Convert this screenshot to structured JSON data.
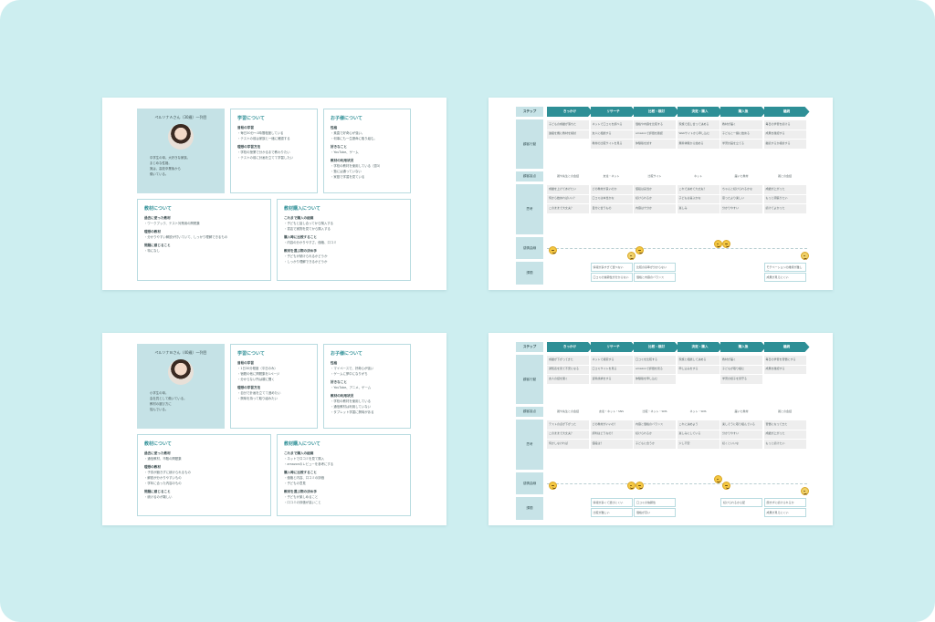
{
  "personas": [
    {
      "profile": {
        "name": "ペルソナＡさん（30歳）一列目",
        "description": [
          "中学生の母。大好きな家族。",
          "まじめな性格。",
          "実は、高校卒業後から",
          "働いている。"
        ]
      },
      "learning": {
        "title": "学習について",
        "groups": [
          {
            "heading": "普段の学習",
            "items": [
              "・毎日30分〜1時間程度している",
              "・テストの前は家族と一緒に確認する"
            ]
          },
          {
            "heading": "理想の学習方法",
            "items": [
              "・学校の授業で分かるまで教わりたい",
              "・テストの前に計画を立てて学習したい"
            ]
          }
        ]
      },
      "child": {
        "title": "お子様について",
        "groups": [
          {
            "heading": "性格",
            "items": [
              "・素直で好奇心が強い。",
              "・何事にも一生懸命に取り組む。"
            ]
          },
          {
            "heading": "好きなこと",
            "items": [
              "・YouTube、ゲーム"
            ]
          },
          {
            "heading": "教材の利用状況",
            "items": [
              "・学校の教材を使用している（週3）",
              "・塾には通っていない",
              "・家庭で学習を見ている"
            ]
          }
        ]
      },
      "material": {
        "title": "教材について",
        "groups": [
          {
            "heading": "過去に使った教材",
            "items": [
              "・ワークブック、テスト対策用の問題集"
            ]
          },
          {
            "heading": "理想の教材",
            "items": [
              "・分かりやすい解説が付いていて、しっかり理解できるもの"
            ]
          },
          {
            "heading": "問題に感じること",
            "items": [
              "・特になし"
            ]
          }
        ]
      },
      "purchase": {
        "title": "教材購入について",
        "groups": [
          {
            "heading": "これまで購入の経緯",
            "items": [
              "・子どもと話し合ってから購入する",
              "・書店で実物を見てから購入する"
            ]
          },
          {
            "heading": "購入時に比較すること",
            "items": [
              "・内容の分かりやすさ、価格、口コミ"
            ]
          },
          {
            "heading": "教材を選ぶ際の決め手",
            "items": [
              "・子どもが続けられるかどうか",
              "・しっかり理解できるかどうか"
            ]
          }
        ]
      }
    },
    {
      "profile": {
        "name": "ペルソナＢさん（40歳）一列目",
        "description": [
          "小学生の母。",
          "会社員として働いている。",
          "教材の選び方に",
          "悩んでいる。"
        ]
      },
      "learning": {
        "title": "学習について",
        "groups": [
          {
            "heading": "普段の学習",
            "items": [
              "・1日30分程度（平日のみ）",
              "・宿題の他に問題集を1ページ",
              "・分からない所は親に聞く"
            ]
          },
          {
            "heading": "理想の学習方法",
            "items": [
              "・自分で計画を立てて進めたい",
              "・興味を持って取り組みたい"
            ]
          }
        ]
      },
      "child": {
        "title": "お子様について",
        "groups": [
          {
            "heading": "性格",
            "items": [
              "・マイペースで、好奇心が強い",
              "・ゲームに夢中になりがち"
            ]
          },
          {
            "heading": "好きなこと",
            "items": [
              "・YouTube、アニメ、ゲーム"
            ]
          },
          {
            "heading": "教材の利用状況",
            "items": [
              "・学校の教材を使用している",
              "・通信教材は利用していない",
              "・タブレット学習に興味がある"
            ]
          }
        ]
      },
      "material": {
        "title": "教材について",
        "groups": [
          {
            "heading": "過去に使った教材",
            "items": [
              "・通信教材、市販の問題集"
            ]
          },
          {
            "heading": "理想の教材",
            "items": [
              "・子供が飽きずに続けられるもの",
              "・解説が分かりやすいもの",
              "・学年に合った内容のもの"
            ]
          },
          {
            "heading": "問題に感じること",
            "items": [
              "・続けるのが難しい"
            ]
          }
        ]
      },
      "purchase": {
        "title": "教材購入について",
        "groups": [
          {
            "heading": "これまで購入の経緯",
            "items": [
              "・ネットで口コミを見て購入",
              "・amazonのレビューを参考にする"
            ]
          },
          {
            "heading": "購入時に比較すること",
            "items": [
              "・価格と内容、口コミの評価",
              "・子どもの意見"
            ]
          },
          {
            "heading": "教材を選ぶ際の決め手",
            "items": [
              "・子どもが楽しめること",
              "・口コミの評価が高いこと"
            ]
          }
        ]
      }
    }
  ],
  "journeys": [
    {
      "step_label": "ステップ",
      "steps": [
        "きっかけ",
        "リサーチ",
        "比較・検討",
        "決定・購入",
        "購入後",
        "継続"
      ],
      "row_labels": {
        "behavior": "顧客行動",
        "touchpoint": "顧客接点",
        "thought": "思考",
        "emotion": "感情曲線",
        "issue": "課題"
      },
      "behavior": [
        [
          "子どもの成績が落ちた",
          "進級を機に教材を検討"
        ],
        [
          "ネットで口コミを調べる",
          "友人に相談する",
          "教材の比較サイトを見る"
        ],
        [
          "価格や内容を比較する",
          "amazonで評価を確認",
          "体験版を試す"
        ],
        [
          "家族で話し合って決める",
          "Webサイトから申し込む",
          "無料体験から始める"
        ],
        [
          "教材が届く",
          "子どもと一緒に始める",
          "学習計画を立てる"
        ],
        [
          "毎日の学習を続ける",
          "成果を確認する",
          "継続するか検討する"
        ]
      ],
      "touchpoints": [
        "親や先生との会話",
        "友達・ネット",
        "比較サイト",
        "ネット",
        "届いた教材",
        "親との会話"
      ],
      "thoughts": [
        [
          "成績を上げてあげたい",
          "何から始めればいい？",
          "このままで大丈夫？"
        ],
        [
          "どの教材が良いのか",
          "口コミは本当かな",
          "自分に合うもの"
        ],
        [
          "値段は妥当か",
          "続けられるか",
          "内容は十分か"
        ],
        [
          "これで決めて大丈夫？",
          "子どもは喜ぶかな",
          "楽しみ"
        ],
        [
          "ちゃんと続けられるかな",
          "思ったより楽しい",
          "分かりやすい"
        ],
        [
          "成績が上がった",
          "もっと頑張りたい",
          "続けてよかった"
        ]
      ],
      "emotions": [
        "neutral",
        "sad",
        "neutral",
        "happy",
        "happy",
        "sad"
      ],
      "issues": [
        [],
        [
          "情報が多すぎて選べない",
          "口コミの信頼性が分からない"
        ],
        [
          "比較の基準が分からない",
          "価格と内容のバランス"
        ],
        [],
        [],
        [
          "モチベーションの維持が難しい",
          "成果が見えにくい"
        ]
      ]
    },
    {
      "step_label": "ステップ",
      "steps": [
        "きっかけ",
        "リサーチ",
        "比較・検討",
        "決定・購入",
        "購入後",
        "継続"
      ],
      "row_labels": {
        "behavior": "顧客行動",
        "touchpoint": "顧客接点",
        "thought": "思考",
        "emotion": "感情曲線",
        "issue": "課題"
      },
      "behavior": [
        [
          "成績が下がってきた",
          "通知表を見て不安になる",
          "友人の話を聞く"
        ],
        [
          "ネットで検索する",
          "口コミサイトを見る",
          "資料請求をする"
        ],
        [
          "口コミを比較する",
          "amazonで評価を見る",
          "体験版を申し込む"
        ],
        [
          "家族と相談して決める",
          "申し込みをする"
        ],
        [
          "教材が届く",
          "子どもが取り組む",
          "学習の様子を見守る"
        ],
        [
          "毎日の学習を習慣にする",
          "成果を確認する"
        ]
      ],
      "touchpoints": [
        "親や先生との会話",
        "友達・ネット・SNS",
        "比較・ネット・SNS",
        "ネット・SNS",
        "届いた教材",
        "親との会話"
      ],
      "thoughts": [
        [
          "テストの点が下がった",
          "このままで大丈夫？",
          "何かしなければ"
        ],
        [
          "どの教材がいいの？",
          "評判はどうなの？",
          "値段は？"
        ],
        [
          "内容と価格のバランス",
          "続けられるか",
          "子どもに合うか"
        ],
        [
          "これに決めよう",
          "楽しみにしている",
          "少し不安"
        ],
        [
          "楽しそうに取り組んでいる",
          "分かりやすい",
          "続くといいな"
        ],
        [
          "習慣になってきた",
          "成績が上がった",
          "もっと続けたい"
        ]
      ],
      "emotions": [
        "neutral",
        "neutral",
        "neutral",
        "happy",
        "neutral",
        "sad"
      ],
      "issues": [
        [],
        [
          "情報が多くて選びにくい",
          "比較が難しい"
        ],
        [
          "口コミの信頼性",
          "価格が高い"
        ],
        [],
        [
          "続けられるか心配"
        ],
        [
          "飽きずに続けられるか",
          "成果が見えにくい"
        ]
      ]
    }
  ]
}
